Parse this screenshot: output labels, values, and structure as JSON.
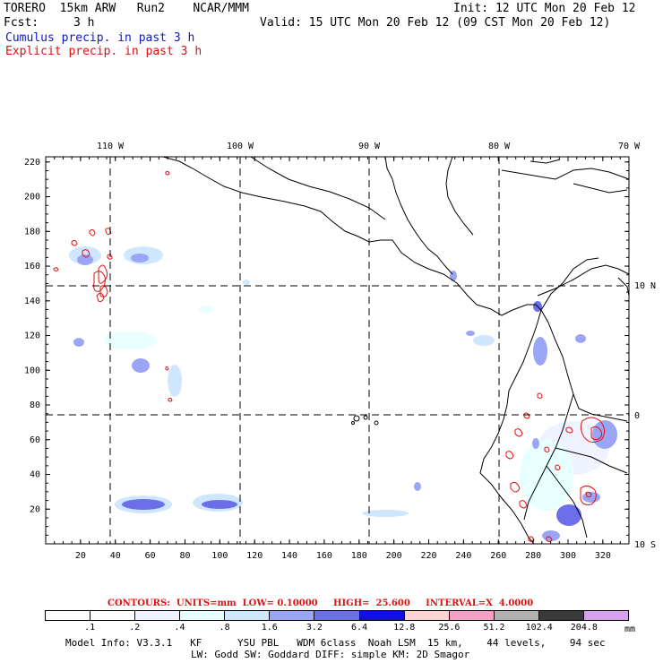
{
  "header": {
    "model_line": "TORERO  15km ARW   Run2    NCAR/MMM",
    "init": "Init: 12 UTC Mon 20 Feb 12",
    "fcst_label": "Fcst:",
    "fcst_value": "3 h",
    "valid": "Valid: 15 UTC Mon 20 Feb 12 (09 CST Mon 20 Feb 12)",
    "cumulus": "Cumulus precip. in past 3 h",
    "explicit": "Explicit precip. in past 3 h"
  },
  "axes": {
    "top_lon_labels": [
      "110 W",
      "100 W",
      "90 W",
      "80 W",
      "70 W"
    ],
    "right_lat_labels": [
      "10 N",
      "0",
      "10 S"
    ],
    "left_ticks": [
      "220",
      "200",
      "180",
      "160",
      "140",
      "120",
      "100",
      "80",
      "60",
      "40",
      "20"
    ],
    "bottom_ticks": [
      "20",
      "40",
      "60",
      "80",
      "100",
      "120",
      "140",
      "160",
      "180",
      "200",
      "220",
      "240",
      "260",
      "280",
      "300",
      "320"
    ]
  },
  "contours": {
    "text": "CONTOURS:  UNITS=mm  LOW= 0.10000     HIGH=  25.600     INTERVAL=X  4.0000"
  },
  "colorbar": {
    "colors": [
      "#ffffff",
      "#ffffff",
      "#eef3ff",
      "#e8ffff",
      "#cfe6ff",
      "#9aa6f5",
      "#6b70ea",
      "#1010e0",
      "#fdd4d4",
      "#f4a0c4",
      "#b0b0b0",
      "#3a3a3a",
      "#d8a0f0"
    ],
    "labels": [
      ".1",
      ".2",
      ".4",
      ".8",
      "1.6",
      "3.2",
      "6.4",
      "12.8",
      "25.6",
      "51.2",
      "102.4",
      "204.8"
    ],
    "unit": "mm"
  },
  "model_info": {
    "line1": "Model Info: V3.3.1   KF      YSU PBL   WDM 6class  Noah LSM  15 km,    44 levels,    94 sec",
    "line2": "LW: Godd SW: Goddard DIFF: simple KM: 2D Smagor"
  },
  "colors": {
    "cumulus_text": "#0a18c8",
    "explicit_contour": "#e01010",
    "precip_light": "#cfe6ff",
    "precip_mid": "#9aa6f5",
    "precip_strong": "#6b70ea"
  }
}
